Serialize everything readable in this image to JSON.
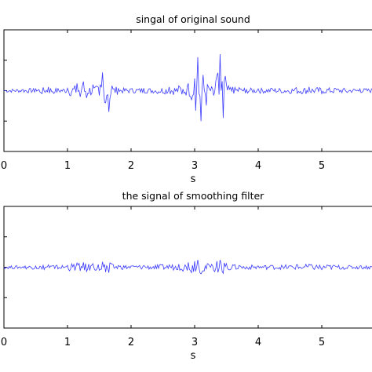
{
  "chart_data": [
    {
      "type": "line",
      "title": "singal of original sound",
      "xlabel": "s",
      "ylabel": "",
      "xlim": [
        0,
        6
      ],
      "ylim": [
        -1,
        1
      ],
      "x_ticks": [
        0,
        1,
        2,
        3,
        4,
        5
      ],
      "x_tick_labels": [
        "0",
        "1",
        "2",
        "3",
        "4",
        "5"
      ],
      "y_ticks": [
        -1,
        -0.5,
        0,
        0.5,
        1
      ],
      "grid": false,
      "series": [
        {
          "color": "#3b3bff",
          "x": [
            0,
            0.3,
            0.5,
            0.6,
            0.7,
            0.8,
            1.0,
            1.15,
            1.2,
            1.25,
            1.3,
            1.4,
            1.5,
            1.55,
            1.6,
            1.65,
            1.7,
            1.8,
            2.0,
            2.2,
            2.4,
            2.6,
            2.75,
            2.8,
            2.9,
            2.95,
            3.0,
            3.05,
            3.1,
            3.2,
            3.3,
            3.35,
            3.4,
            3.45,
            3.5,
            3.6,
            3.7,
            3.8,
            4.0,
            4.2,
            4.4,
            4.6,
            4.8,
            5.0,
            5.2,
            5.4,
            5.6,
            5.8,
            6.0
          ],
          "y": [
            0,
            0.02,
            0.03,
            -0.05,
            0.06,
            -0.03,
            0.04,
            0.12,
            -0.1,
            0.15,
            -0.12,
            0.1,
            -0.08,
            0.3,
            -0.2,
            -0.35,
            0.08,
            0.04,
            0.03,
            0.04,
            -0.03,
            0.06,
            0.08,
            -0.06,
            0.12,
            -0.15,
            0.2,
            0.55,
            -0.5,
            0.1,
            -0.08,
            0.25,
            0.6,
            -0.45,
            0.1,
            0.06,
            0.05,
            -0.04,
            0.03,
            0.04,
            -0.03,
            0.05,
            0.06,
            -0.05,
            0.04,
            -0.03,
            0.03,
            0.02,
            0
          ]
        }
      ]
    },
    {
      "type": "line",
      "title": "the signal of smoothing filter",
      "xlabel": "s",
      "ylabel": "",
      "xlim": [
        0,
        6
      ],
      "ylim": [
        -1,
        1
      ],
      "x_ticks": [
        0,
        1,
        2,
        3,
        4,
        5
      ],
      "x_tick_labels": [
        "0",
        "1",
        "2",
        "3",
        "4",
        "5"
      ],
      "y_ticks": [
        -1,
        -0.5,
        0,
        0.5,
        1
      ],
      "grid": false,
      "series": [
        {
          "color": "#3b3bff",
          "x": [
            0,
            0.3,
            0.5,
            0.6,
            0.7,
            0.8,
            1.0,
            1.15,
            1.2,
            1.25,
            1.3,
            1.4,
            1.5,
            1.55,
            1.6,
            1.65,
            1.7,
            1.8,
            2.0,
            2.2,
            2.4,
            2.6,
            2.75,
            2.8,
            2.9,
            2.95,
            3.0,
            3.05,
            3.1,
            3.2,
            3.3,
            3.35,
            3.4,
            3.45,
            3.5,
            3.6,
            3.7,
            3.8,
            4.0,
            4.2,
            4.4,
            4.6,
            4.8,
            5.0,
            5.2,
            5.4,
            5.6,
            5.8,
            6.0
          ],
          "y": [
            0,
            0.01,
            0.02,
            -0.03,
            0.04,
            -0.02,
            0.03,
            0.07,
            -0.06,
            0.08,
            -0.07,
            0.06,
            -0.05,
            0.09,
            -0.08,
            -0.09,
            0.05,
            0.03,
            0.02,
            0.03,
            -0.02,
            0.04,
            0.05,
            -0.04,
            0.08,
            -0.09,
            0.1,
            0.12,
            -0.11,
            0.06,
            -0.05,
            0.1,
            0.12,
            -0.1,
            0.06,
            0.04,
            0.03,
            -0.03,
            0.02,
            0.03,
            -0.02,
            0.04,
            0.05,
            -0.04,
            0.03,
            -0.02,
            0.02,
            0.01,
            0
          ]
        }
      ]
    }
  ]
}
